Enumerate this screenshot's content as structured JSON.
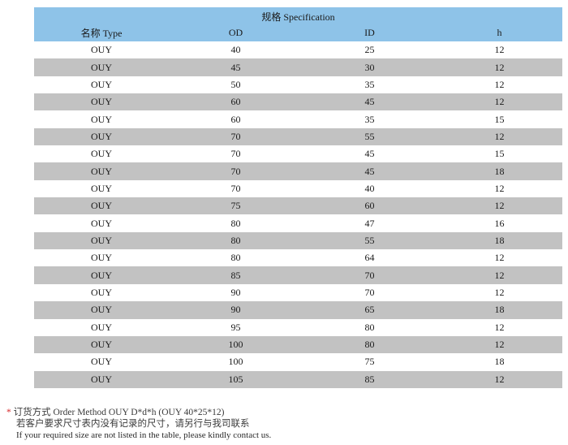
{
  "table": {
    "title": "规格 Specification",
    "headers": [
      "名称 Type",
      "OD",
      "ID",
      "h"
    ],
    "rows": [
      [
        "OUY",
        "40",
        "25",
        "12"
      ],
      [
        "OUY",
        "45",
        "30",
        "12"
      ],
      [
        "OUY",
        "50",
        "35",
        "12"
      ],
      [
        "OUY",
        "60",
        "45",
        "12"
      ],
      [
        "OUY",
        "60",
        "35",
        "15"
      ],
      [
        "OUY",
        "70",
        "55",
        "12"
      ],
      [
        "OUY",
        "70",
        "45",
        "15"
      ],
      [
        "OUY",
        "70",
        "45",
        "18"
      ],
      [
        "OUY",
        "70",
        "40",
        "12"
      ],
      [
        "OUY",
        "75",
        "60",
        "12"
      ],
      [
        "OUY",
        "80",
        "47",
        "16"
      ],
      [
        "OUY",
        "80",
        "55",
        "18"
      ],
      [
        "OUY",
        "80",
        "64",
        "12"
      ],
      [
        "OUY",
        "85",
        "70",
        "12"
      ],
      [
        "OUY",
        "90",
        "70",
        "12"
      ],
      [
        "OUY",
        "90",
        "65",
        "18"
      ],
      [
        "OUY",
        "95",
        "80",
        "12"
      ],
      [
        "OUY",
        "100",
        "80",
        "12"
      ],
      [
        "OUY",
        "100",
        "75",
        "18"
      ],
      [
        "OUY",
        "105",
        "85",
        "12"
      ]
    ]
  },
  "footnote": {
    "star": "*",
    "order_method": "订货方式 Order Method   OUY D*d*h   (OUY 40*25*12)",
    "note_cn": "若客户要求尺寸表内没有记录的尺寸，请另行与我司联系",
    "note_en": "If your required size are not listed in the table, please kindly contact us."
  },
  "colors": {
    "header_bg": "#8ec3e8",
    "stripe_bg": "#c2c2c2",
    "star": "#d8282a"
  }
}
